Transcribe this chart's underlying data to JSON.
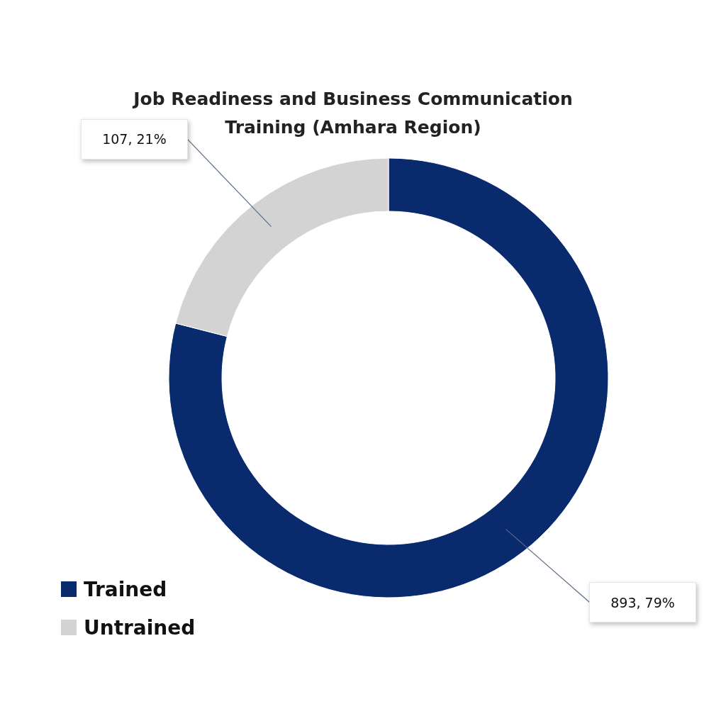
{
  "chart_data": {
    "type": "donut",
    "title": "Job Readiness and Business Communication Training (Amhara Region)",
    "categories": [
      "Trained",
      "Untrained"
    ],
    "values": [
      79,
      21
    ],
    "value_labels": [
      "893, 79%",
      "107, 21%"
    ],
    "colors": [
      "#0a2a6e",
      "#d3d3d3"
    ],
    "legend": "bottom left"
  }
}
